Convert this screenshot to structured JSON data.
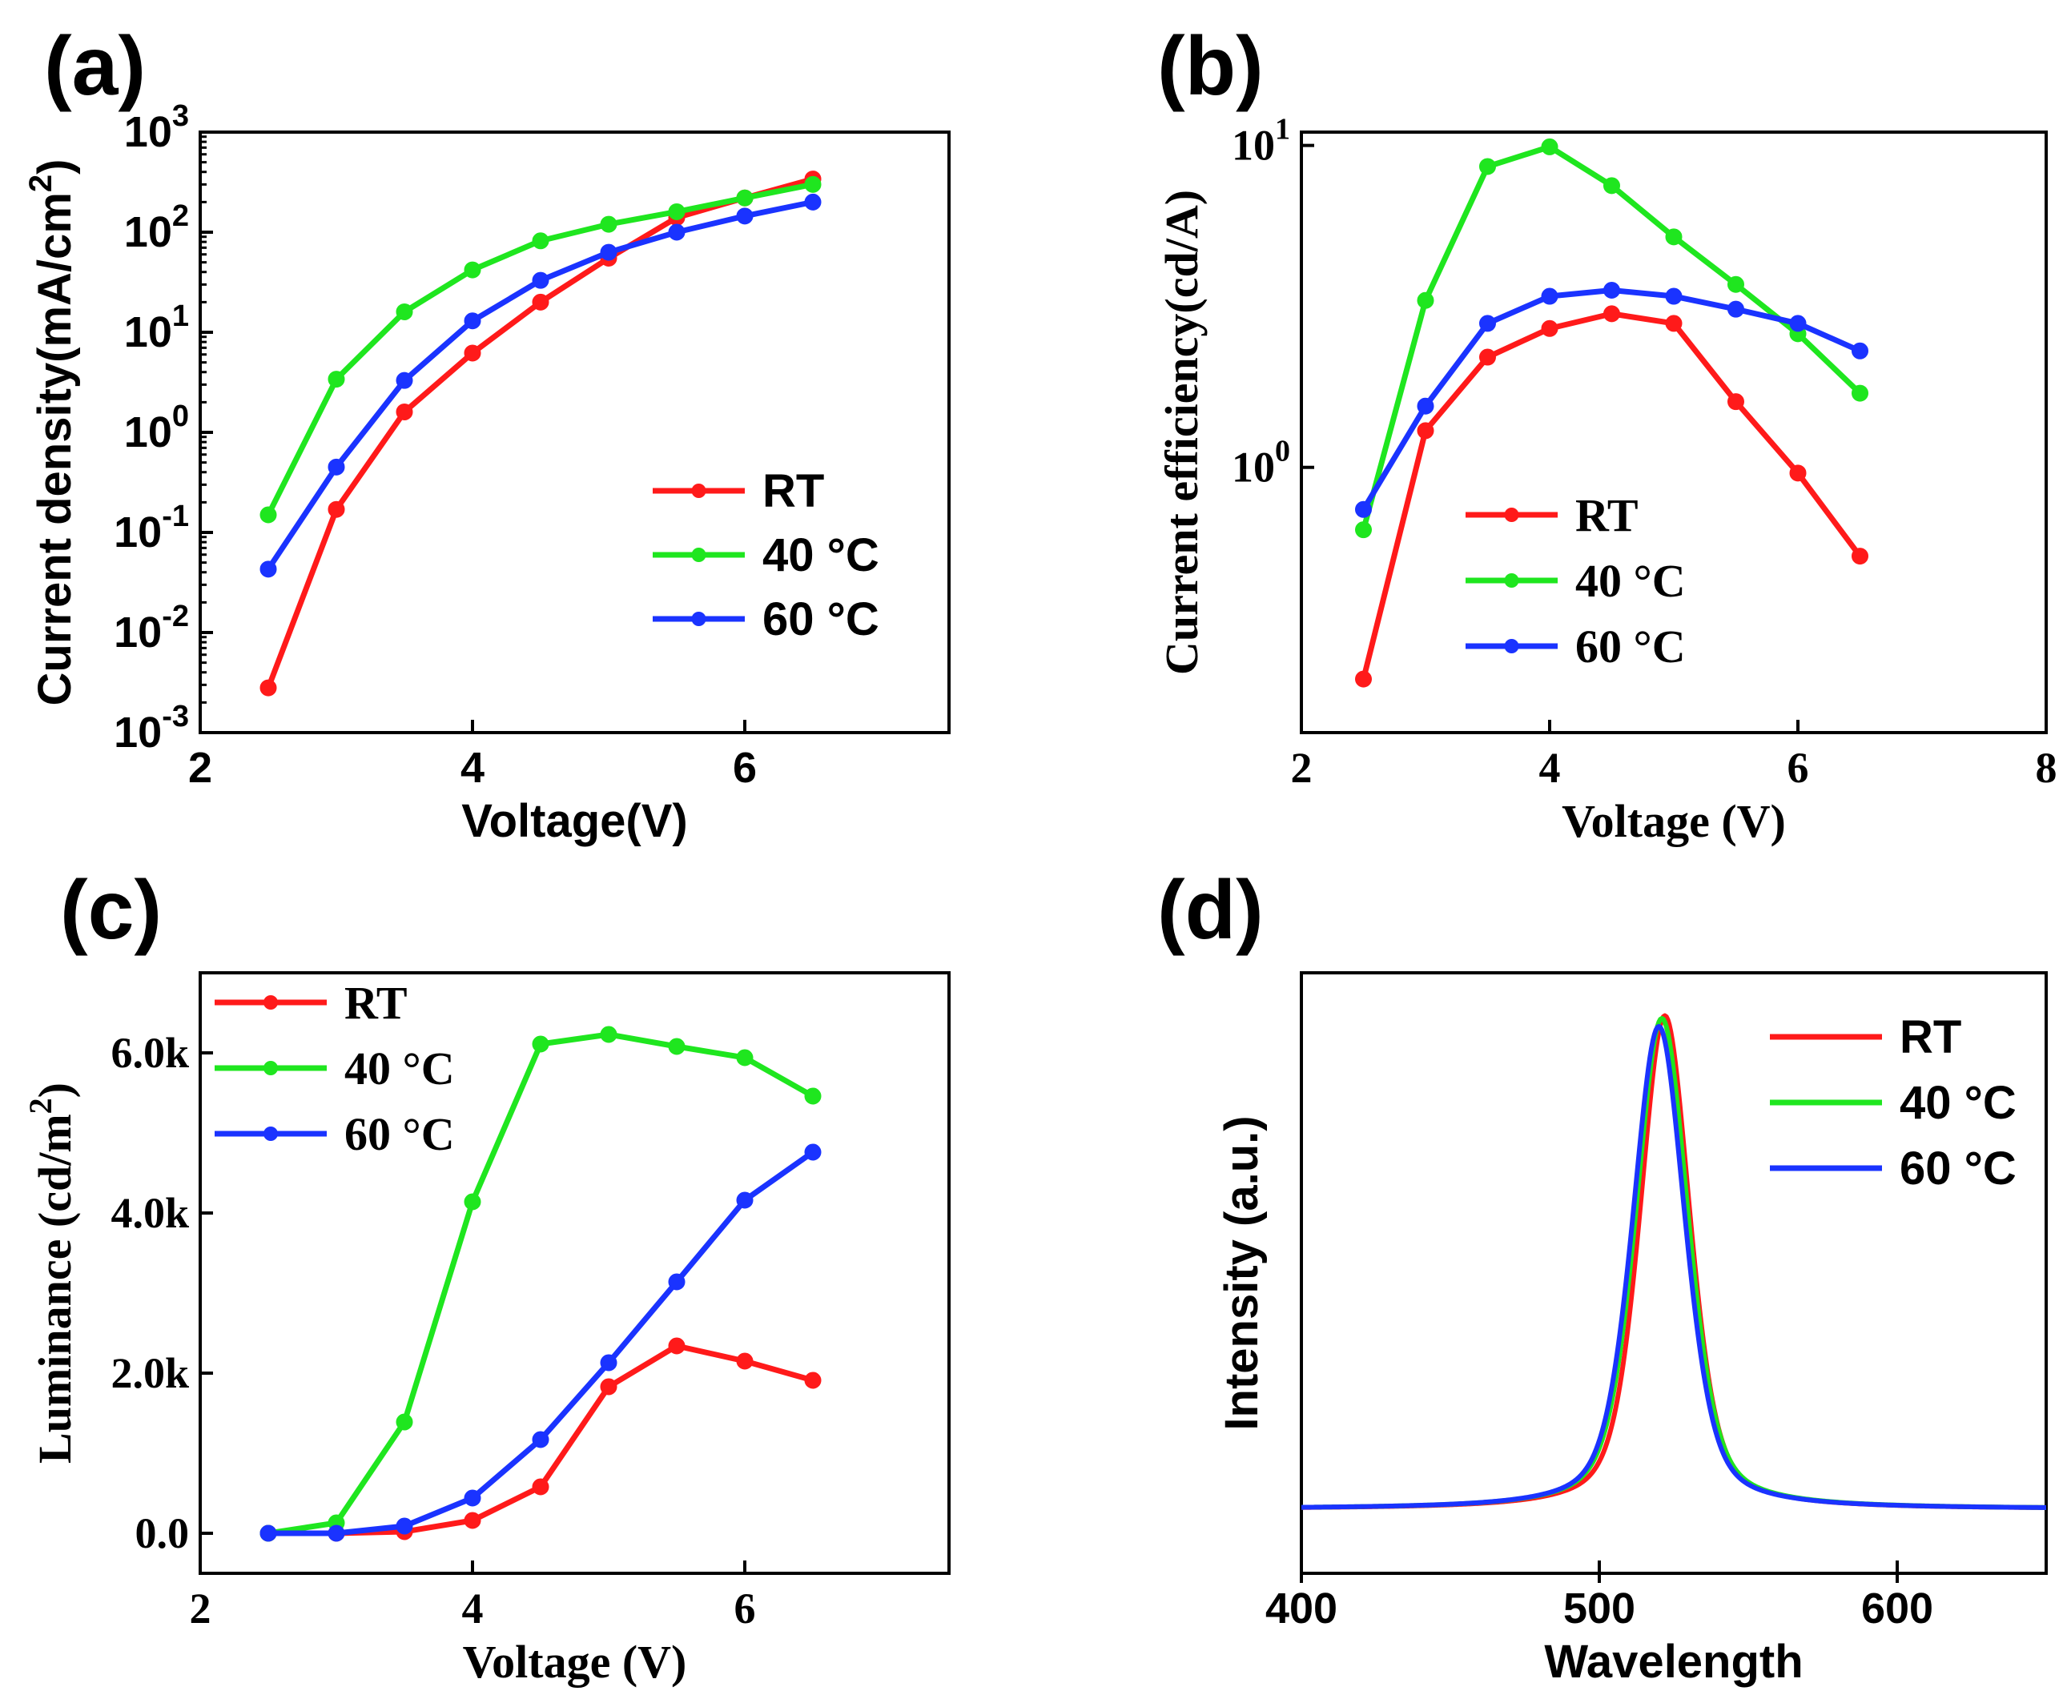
{
  "series_colors": {
    "RT": "#ff1a1a",
    "40C": "#1fe61f",
    "60C": "#1a33ff"
  },
  "chart_data": [
    {
      "panel": "(a)",
      "type": "line",
      "yscale": "log",
      "xlabel": "Voltage(V)",
      "ylabel_prefix": "Current density(mA/cm",
      "ylabel_sup": "2",
      "ylabel_suffix": ")",
      "xlim": [
        2,
        7.5
      ],
      "ylim": [
        0.001,
        1000
      ],
      "xticks": [
        {
          "value": 2,
          "label": "2"
        },
        {
          "value": 4,
          "label": "4"
        },
        {
          "value": 6,
          "label": "6"
        }
      ],
      "yticks": [
        {
          "value": 0.001,
          "base": "10",
          "exp": "-3"
        },
        {
          "value": 0.01,
          "base": "10",
          "exp": "-2"
        },
        {
          "value": 0.1,
          "base": "10",
          "exp": "-1"
        },
        {
          "value": 1,
          "base": "10",
          "exp": "0"
        },
        {
          "value": 10,
          "base": "10",
          "exp": "1"
        },
        {
          "value": 100,
          "base": "10",
          "exp": "2"
        },
        {
          "value": 1000,
          "base": "10",
          "exp": "3"
        }
      ],
      "legend_position": "lower-right",
      "series": [
        {
          "name": "RT",
          "key": "RT",
          "x": [
            2.5,
            3.0,
            3.5,
            4.0,
            4.5,
            5.0,
            5.5,
            6.0,
            6.5
          ],
          "values": [
            0.0028,
            0.17,
            1.6,
            6.2,
            20,
            55,
            140,
            220,
            340
          ]
        },
        {
          "name": "40 °C",
          "key": "40C",
          "x": [
            2.5,
            3.0,
            3.5,
            4.0,
            4.5,
            5.0,
            5.5,
            6.0,
            6.5
          ],
          "values": [
            0.15,
            3.4,
            16,
            42,
            82,
            120,
            160,
            220,
            300
          ]
        },
        {
          "name": "60 °C",
          "key": "60C",
          "x": [
            2.5,
            3.0,
            3.5,
            4.0,
            4.5,
            5.0,
            5.5,
            6.0,
            6.5
          ],
          "values": [
            0.043,
            0.45,
            3.3,
            13,
            33,
            63,
            100,
            145,
            200
          ]
        }
      ]
    },
    {
      "panel": "(b)",
      "type": "line",
      "yscale": "log",
      "xlabel": "Voltage (V)",
      "ylabel": "Current efficiency(cd/A)",
      "xlim": [
        2,
        8
      ],
      "ylim": [
        0.15,
        11
      ],
      "xticks": [
        {
          "value": 2,
          "label": "2"
        },
        {
          "value": 4,
          "label": "4"
        },
        {
          "value": 6,
          "label": "6"
        },
        {
          "value": 8,
          "label": "8"
        }
      ],
      "yticks": [
        {
          "value": 1,
          "base": "10",
          "exp": "0"
        },
        {
          "value": 10,
          "base": "10",
          "exp": "1"
        }
      ],
      "legend_position": "center-left",
      "series": [
        {
          "name": "RT",
          "key": "RT",
          "x": [
            2.5,
            3.0,
            3.5,
            4.0,
            4.5,
            5.0,
            5.5,
            6.0,
            6.5
          ],
          "values": [
            0.22,
            1.3,
            2.2,
            2.7,
            3.0,
            2.8,
            1.6,
            0.96,
            0.53
          ]
        },
        {
          "name": "40 °C",
          "key": "40C",
          "x": [
            2.5,
            3.0,
            3.5,
            4.0,
            4.5,
            5.0,
            5.5,
            6.0,
            6.5
          ],
          "values": [
            0.64,
            3.3,
            8.6,
            9.9,
            7.5,
            5.2,
            3.7,
            2.6,
            1.7
          ]
        },
        {
          "name": "60 °C",
          "key": "60C",
          "x": [
            2.5,
            3.0,
            3.5,
            4.0,
            4.5,
            5.0,
            5.5,
            6.0,
            6.5
          ],
          "values": [
            0.74,
            1.55,
            2.8,
            3.4,
            3.55,
            3.4,
            3.1,
            2.8,
            2.3
          ]
        }
      ]
    },
    {
      "panel": "(c)",
      "type": "line",
      "yscale": "linear",
      "xlabel": "Voltage (V)",
      "ylabel_prefix": "Luminance (cd/m",
      "ylabel_sup": "2",
      "ylabel_suffix": ")",
      "xlim": [
        2,
        7.5
      ],
      "ylim": [
        -500,
        7000
      ],
      "xticks": [
        {
          "value": 2,
          "label": "2"
        },
        {
          "value": 4,
          "label": "4"
        },
        {
          "value": 6,
          "label": "6"
        }
      ],
      "yticks": [
        {
          "value": 0,
          "label": "0.0"
        },
        {
          "value": 2000,
          "label": "2.0k"
        },
        {
          "value": 4000,
          "label": "4.0k"
        },
        {
          "value": 6000,
          "label": "6.0k"
        }
      ],
      "legend_position": "upper-left",
      "series": [
        {
          "name": "RT",
          "key": "RT",
          "x": [
            2.5,
            3.0,
            3.5,
            4.0,
            4.5,
            5.0,
            5.5,
            6.0,
            6.5
          ],
          "values": [
            0,
            0,
            20,
            160,
            580,
            1830,
            2340,
            2150,
            1910
          ]
        },
        {
          "name": "40 °C",
          "key": "40C",
          "x": [
            2.5,
            3.0,
            3.5,
            4.0,
            4.5,
            5.0,
            5.5,
            6.0,
            6.5
          ],
          "values": [
            0,
            130,
            1390,
            4140,
            6110,
            6230,
            6080,
            5940,
            5460
          ]
        },
        {
          "name": "60 °C",
          "key": "60C",
          "x": [
            2.5,
            3.0,
            3.5,
            4.0,
            4.5,
            5.0,
            5.5,
            6.0,
            6.5
          ],
          "values": [
            0,
            0,
            90,
            440,
            1170,
            2130,
            3140,
            4160,
            4760
          ]
        }
      ]
    },
    {
      "panel": "(d)",
      "type": "line",
      "yscale": "linear",
      "xlabel": "Wavelength",
      "ylabel": "Intensity (a.u.)",
      "xlim": [
        400,
        650
      ],
      "ylim": [
        -0.12,
        1.0
      ],
      "xticks": [
        {
          "value": 400,
          "label": "400"
        },
        {
          "value": 500,
          "label": "500"
        },
        {
          "value": 600,
          "label": "600"
        }
      ],
      "yticks": [],
      "legend_position": "upper-right",
      "series": [
        {
          "name": "RT",
          "key": "RT",
          "peak_nm": 522,
          "fwhm_nm": 20,
          "peak": 0.92,
          "baseline": 0.0
        },
        {
          "name": "40 °C",
          "key": "40C",
          "peak_nm": 521,
          "fwhm_nm": 21,
          "peak": 0.915,
          "baseline": 0.0
        },
        {
          "name": "60 °C",
          "key": "60C",
          "peak_nm": 520,
          "fwhm_nm": 21,
          "peak": 0.9,
          "baseline": 0.0
        }
      ]
    }
  ]
}
